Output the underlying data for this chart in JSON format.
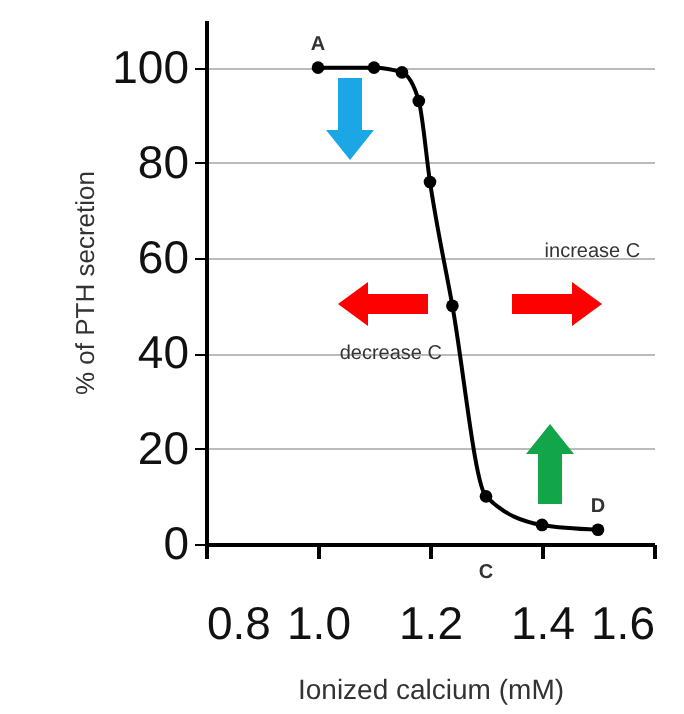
{
  "chart_data": {
    "type": "line",
    "xlabel": "Ionized calcium (mM)",
    "ylabel": "% of PTH secretion",
    "x": [
      1.0,
      1.1,
      1.15,
      1.18,
      1.2,
      1.24,
      1.3,
      1.4,
      1.5
    ],
    "series": [
      {
        "color": "#000000",
        "values": [
          100,
          100,
          99,
          93,
          76,
          50,
          10,
          4,
          3
        ]
      }
    ],
    "xlim": [
      0.8,
      1.6
    ],
    "xticks": [
      {
        "value": 0.8,
        "label": "0.8"
      },
      {
        "value": 1.0,
        "label": "1.0"
      },
      {
        "value": 1.2,
        "label": "1.2"
      },
      {
        "value": 1.4,
        "label": "1.4"
      },
      {
        "value": 1.6,
        "label": "1.6"
      }
    ],
    "ylim": [
      0,
      110
    ],
    "yticks": [
      0,
      20,
      40,
      60,
      80,
      100
    ],
    "grid": "y",
    "marker": "circle",
    "line_style": "solid",
    "annotations": [
      {
        "text": "A",
        "x": 1.0,
        "y": 100
      },
      {
        "text": "D",
        "x": 1.5,
        "y": 3
      },
      "C",
      "increase C",
      "decrease C"
    ]
  }
}
